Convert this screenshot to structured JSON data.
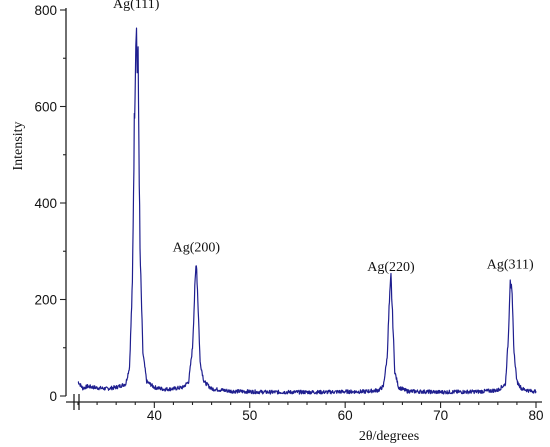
{
  "chart_data": {
    "type": "line",
    "title": "",
    "xlabel": "2θ/degrees",
    "ylabel": "Intensity",
    "xlim": [
      32,
      80
    ],
    "ylim": [
      0,
      800
    ],
    "x_ticks": [
      40,
      50,
      60,
      70,
      80
    ],
    "y_ticks": [
      0,
      200,
      400,
      600,
      800
    ],
    "grid": false,
    "line_color": "#1f1f8f",
    "series": [
      {
        "values": [
          [
            32.0,
            30
          ],
          [
            32.5,
            16
          ],
          [
            33.0,
            20
          ],
          [
            34.0,
            17
          ],
          [
            35.0,
            15
          ],
          [
            36.0,
            18
          ],
          [
            37.0,
            25
          ],
          [
            37.4,
            60
          ],
          [
            37.7,
            230
          ],
          [
            37.9,
            560
          ],
          [
            38.1,
            790
          ],
          [
            38.2,
            680
          ],
          [
            38.3,
            690
          ],
          [
            38.5,
            300
          ],
          [
            38.8,
            90
          ],
          [
            39.2,
            30
          ],
          [
            40.0,
            18
          ],
          [
            41.0,
            14
          ],
          [
            42.0,
            15
          ],
          [
            43.0,
            18
          ],
          [
            43.6,
            30
          ],
          [
            44.0,
            100
          ],
          [
            44.2,
            200
          ],
          [
            44.4,
            285
          ],
          [
            44.6,
            180
          ],
          [
            44.8,
            70
          ],
          [
            45.2,
            30
          ],
          [
            46.0,
            15
          ],
          [
            48.0,
            10
          ],
          [
            50.0,
            9
          ],
          [
            52.0,
            8
          ],
          [
            55.0,
            8
          ],
          [
            58.0,
            8
          ],
          [
            60.0,
            9
          ],
          [
            62.0,
            9
          ],
          [
            63.5,
            12
          ],
          [
            64.0,
            20
          ],
          [
            64.4,
            80
          ],
          [
            64.6,
            180
          ],
          [
            64.8,
            245
          ],
          [
            65.0,
            150
          ],
          [
            65.2,
            50
          ],
          [
            65.6,
            18
          ],
          [
            66.5,
            10
          ],
          [
            70.0,
            8
          ],
          [
            74.0,
            9
          ],
          [
            76.0,
            12
          ],
          [
            76.8,
            25
          ],
          [
            77.1,
            120
          ],
          [
            77.3,
            250
          ],
          [
            77.5,
            200
          ],
          [
            77.7,
            90
          ],
          [
            78.0,
            30
          ],
          [
            78.5,
            15
          ],
          [
            79.5,
            10
          ],
          [
            80.0,
            10
          ]
        ]
      }
    ],
    "annotations": [
      {
        "text": "Ag(111)",
        "x": 38.1,
        "y": 790
      },
      {
        "text": "Ag(200)",
        "x": 44.4,
        "y": 285
      },
      {
        "text": "Ag(220)",
        "x": 64.8,
        "y": 245
      },
      {
        "text": "Ag(311)",
        "x": 77.3,
        "y": 250
      }
    ]
  }
}
